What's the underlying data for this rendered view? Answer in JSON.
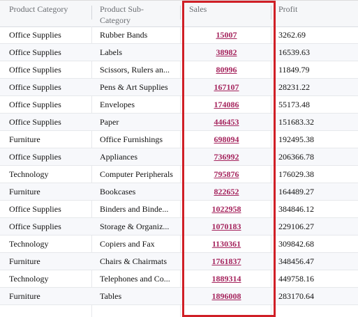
{
  "columns": {
    "category": "Product Category",
    "subcategory": "Product Sub-Category",
    "sales": "Sales",
    "profit": "Profit"
  },
  "rows": [
    {
      "category": "Office Supplies",
      "subcategory": "Rubber Bands",
      "sales": "15007",
      "profit": "3262.69"
    },
    {
      "category": "Office Supplies",
      "subcategory": "Labels",
      "sales": "38982",
      "profit": "16539.63"
    },
    {
      "category": "Office Supplies",
      "subcategory": "Scissors, Rulers an...",
      "sales": "80996",
      "profit": "11849.79"
    },
    {
      "category": "Office Supplies",
      "subcategory": "Pens & Art Supplies",
      "sales": "167107",
      "profit": "28231.22"
    },
    {
      "category": "Office Supplies",
      "subcategory": "Envelopes",
      "sales": "174086",
      "profit": "55173.48"
    },
    {
      "category": "Office Supplies",
      "subcategory": "Paper",
      "sales": "446453",
      "profit": "151683.32"
    },
    {
      "category": "Furniture",
      "subcategory": "Office Furnishings",
      "sales": "698094",
      "profit": "192495.38"
    },
    {
      "category": "Office Supplies",
      "subcategory": "Appliances",
      "sales": "736992",
      "profit": "206366.78"
    },
    {
      "category": "Technology",
      "subcategory": "Computer Peripherals",
      "sales": "795876",
      "profit": "176029.38"
    },
    {
      "category": "Furniture",
      "subcategory": "Bookcases",
      "sales": "822652",
      "profit": "164489.27"
    },
    {
      "category": "Office Supplies",
      "subcategory": "Binders and Binde...",
      "sales": "1022958",
      "profit": "384846.12"
    },
    {
      "category": "Office Supplies",
      "subcategory": "Storage & Organiz...",
      "sales": "1070183",
      "profit": "229106.27"
    },
    {
      "category": "Technology",
      "subcategory": "Copiers and Fax",
      "sales": "1130361",
      "profit": "309842.68"
    },
    {
      "category": "Furniture",
      "subcategory": "Chairs & Chairmats",
      "sales": "1761837",
      "profit": "348456.47"
    },
    {
      "category": "Technology",
      "subcategory": "Telephones and Co...",
      "sales": "1889314",
      "profit": "449758.16"
    },
    {
      "category": "Furniture",
      "subcategory": "Tables",
      "sales": "1896008",
      "profit": "283170.64"
    }
  ],
  "highlight_color": "#d01f26",
  "link_color": "#a5245d"
}
